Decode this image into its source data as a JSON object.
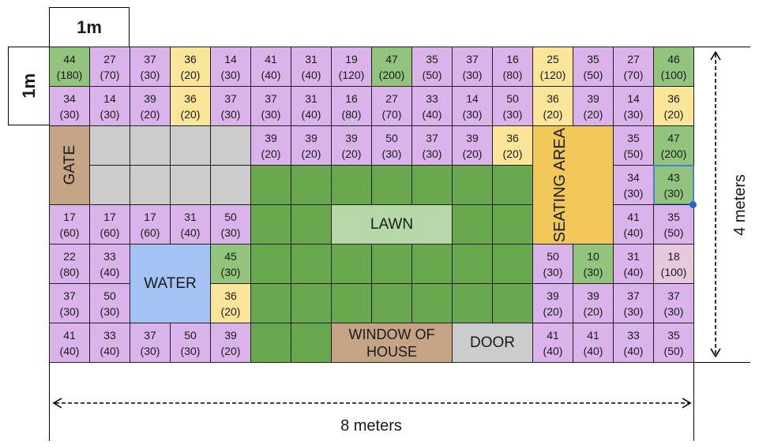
{
  "header": {
    "top_scale": "1m",
    "left_scale": "1m"
  },
  "dimensions": {
    "width_label": "8 meters",
    "height_label": "4 meters"
  },
  "features": {
    "gate": "GATE",
    "water": "WATER",
    "lawn": "LAWN",
    "seating_area": "SEATING AREA",
    "window_of_house": "WINDOW OF HOUSE",
    "door": "DOOR"
  },
  "colors": {
    "purple": "#d9b3ea",
    "green": "#93c47d",
    "yellow": "#fbe599",
    "grey": "#cccccc",
    "lawn": "#6aa84f",
    "pink": "#e6c9dd",
    "water": "#a4c2f4",
    "seating": "#f1c75a",
    "lawn_label": "#b6d7a8",
    "wood": "#c4a484",
    "door": "#cccccc"
  },
  "grid": {
    "rows": 8,
    "cols": 16,
    "selected_cell": [
      3,
      15
    ],
    "cells": [
      [
        0,
        0,
        "44",
        "(180)",
        "green"
      ],
      [
        0,
        1,
        "27",
        "(70)",
        "purple"
      ],
      [
        0,
        2,
        "37",
        "(30)",
        "purple"
      ],
      [
        0,
        3,
        "36",
        "(20)",
        "yellow"
      ],
      [
        0,
        4,
        "14",
        "(30)",
        "purple"
      ],
      [
        0,
        5,
        "41",
        "(40)",
        "purple"
      ],
      [
        0,
        6,
        "31",
        "(40)",
        "purple"
      ],
      [
        0,
        7,
        "19",
        "(120)",
        "purple"
      ],
      [
        0,
        8,
        "47",
        "(200)",
        "green"
      ],
      [
        0,
        9,
        "35",
        "(50)",
        "purple"
      ],
      [
        0,
        10,
        "37",
        "(30)",
        "purple"
      ],
      [
        0,
        11,
        "16",
        "(80)",
        "purple"
      ],
      [
        0,
        12,
        "25",
        "(120)",
        "yellow"
      ],
      [
        0,
        13,
        "35",
        "(50)",
        "purple"
      ],
      [
        0,
        14,
        "27",
        "(70)",
        "purple"
      ],
      [
        0,
        15,
        "46",
        "(100)",
        "green"
      ],
      [
        1,
        0,
        "34",
        "(30)",
        "purple"
      ],
      [
        1,
        1,
        "14",
        "(30)",
        "purple"
      ],
      [
        1,
        2,
        "39",
        "(20)",
        "purple"
      ],
      [
        1,
        3,
        "36",
        "(20)",
        "yellow"
      ],
      [
        1,
        4,
        "37",
        "(30)",
        "purple"
      ],
      [
        1,
        5,
        "37",
        "(30)",
        "purple"
      ],
      [
        1,
        6,
        "31",
        "(40)",
        "purple"
      ],
      [
        1,
        7,
        "16",
        "(80)",
        "purple"
      ],
      [
        1,
        8,
        "27",
        "(70)",
        "purple"
      ],
      [
        1,
        9,
        "33",
        "(40)",
        "purple"
      ],
      [
        1,
        10,
        "14",
        "(30)",
        "purple"
      ],
      [
        1,
        11,
        "50",
        "(30)",
        "purple"
      ],
      [
        1,
        12,
        "36",
        "(20)",
        "yellow"
      ],
      [
        1,
        13,
        "39",
        "(20)",
        "purple"
      ],
      [
        1,
        14,
        "14",
        "(30)",
        "purple"
      ],
      [
        1,
        15,
        "36",
        "(20)",
        "yellow"
      ],
      [
        2,
        1,
        "",
        "",
        "grey"
      ],
      [
        2,
        2,
        "",
        "",
        "grey"
      ],
      [
        2,
        3,
        "",
        "",
        "grey"
      ],
      [
        2,
        4,
        "",
        "",
        "grey"
      ],
      [
        2,
        5,
        "39",
        "(20)",
        "purple"
      ],
      [
        2,
        6,
        "39",
        "(20)",
        "purple"
      ],
      [
        2,
        7,
        "39",
        "(20)",
        "purple"
      ],
      [
        2,
        8,
        "50",
        "(30)",
        "purple"
      ],
      [
        2,
        9,
        "37",
        "(30)",
        "purple"
      ],
      [
        2,
        10,
        "39",
        "(20)",
        "purple"
      ],
      [
        2,
        11,
        "36",
        "(20)",
        "yellow"
      ],
      [
        2,
        14,
        "35",
        "(50)",
        "purple"
      ],
      [
        2,
        15,
        "47",
        "(200)",
        "green"
      ],
      [
        3,
        1,
        "",
        "",
        "grey"
      ],
      [
        3,
        2,
        "",
        "",
        "grey"
      ],
      [
        3,
        3,
        "",
        "",
        "grey"
      ],
      [
        3,
        4,
        "",
        "",
        "grey"
      ],
      [
        3,
        5,
        "",
        "",
        "lawn"
      ],
      [
        3,
        6,
        "",
        "",
        "lawn"
      ],
      [
        3,
        7,
        "",
        "",
        "lawn"
      ],
      [
        3,
        8,
        "",
        "",
        "lawn"
      ],
      [
        3,
        9,
        "",
        "",
        "lawn"
      ],
      [
        3,
        10,
        "",
        "",
        "lawn"
      ],
      [
        3,
        11,
        "",
        "",
        "lawn"
      ],
      [
        3,
        14,
        "34",
        "(30)",
        "purple"
      ],
      [
        3,
        15,
        "43",
        "(30)",
        "green"
      ],
      [
        4,
        0,
        "17",
        "(60)",
        "purple"
      ],
      [
        4,
        1,
        "17",
        "(60)",
        "purple"
      ],
      [
        4,
        2,
        "17",
        "(60)",
        "purple"
      ],
      [
        4,
        3,
        "31",
        "(40)",
        "purple"
      ],
      [
        4,
        4,
        "50",
        "(30)",
        "purple"
      ],
      [
        4,
        5,
        "",
        "",
        "lawn"
      ],
      [
        4,
        6,
        "",
        "",
        "lawn"
      ],
      [
        4,
        10,
        "",
        "",
        "lawn"
      ],
      [
        4,
        11,
        "",
        "",
        "lawn"
      ],
      [
        4,
        14,
        "41",
        "(40)",
        "purple"
      ],
      [
        4,
        15,
        "35",
        "(50)",
        "purple"
      ],
      [
        5,
        0,
        "22",
        "(80)",
        "purple"
      ],
      [
        5,
        1,
        "33",
        "(40)",
        "purple"
      ],
      [
        5,
        4,
        "45",
        "(30)",
        "green"
      ],
      [
        5,
        5,
        "",
        "",
        "lawn"
      ],
      [
        5,
        6,
        "",
        "",
        "lawn"
      ],
      [
        5,
        7,
        "",
        "",
        "lawn"
      ],
      [
        5,
        8,
        "",
        "",
        "lawn"
      ],
      [
        5,
        9,
        "",
        "",
        "lawn"
      ],
      [
        5,
        10,
        "",
        "",
        "lawn"
      ],
      [
        5,
        11,
        "",
        "",
        "lawn"
      ],
      [
        5,
        12,
        "50",
        "(30)",
        "purple"
      ],
      [
        5,
        13,
        "10",
        "(30)",
        "green"
      ],
      [
        5,
        14,
        "31",
        "(40)",
        "purple"
      ],
      [
        5,
        15,
        "18",
        "(100)",
        "pink"
      ],
      [
        6,
        0,
        "37",
        "(30)",
        "purple"
      ],
      [
        6,
        1,
        "50",
        "(30)",
        "purple"
      ],
      [
        6,
        4,
        "36",
        "(20)",
        "yellow"
      ],
      [
        6,
        5,
        "",
        "",
        "lawn"
      ],
      [
        6,
        6,
        "",
        "",
        "lawn"
      ],
      [
        6,
        7,
        "",
        "",
        "lawn"
      ],
      [
        6,
        8,
        "",
        "",
        "lawn"
      ],
      [
        6,
        9,
        "",
        "",
        "lawn"
      ],
      [
        6,
        10,
        "",
        "",
        "lawn"
      ],
      [
        6,
        11,
        "",
        "",
        "lawn"
      ],
      [
        6,
        12,
        "39",
        "(20)",
        "purple"
      ],
      [
        6,
        13,
        "39",
        "(20)",
        "purple"
      ],
      [
        6,
        14,
        "37",
        "(30)",
        "purple"
      ],
      [
        6,
        15,
        "37",
        "(30)",
        "purple"
      ],
      [
        7,
        0,
        "41",
        "(40)",
        "purple"
      ],
      [
        7,
        1,
        "33",
        "(40)",
        "purple"
      ],
      [
        7,
        2,
        "37",
        "(30)",
        "purple"
      ],
      [
        7,
        3,
        "50",
        "(30)",
        "purple"
      ],
      [
        7,
        4,
        "39",
        "(20)",
        "purple"
      ],
      [
        7,
        5,
        "",
        "",
        "lawn"
      ],
      [
        7,
        6,
        "",
        "",
        "lawn"
      ],
      [
        7,
        12,
        "41",
        "(40)",
        "purple"
      ],
      [
        7,
        13,
        "41",
        "(40)",
        "purple"
      ],
      [
        7,
        14,
        "33",
        "(40)",
        "purple"
      ],
      [
        7,
        15,
        "35",
        "(50)",
        "purple"
      ]
    ]
  }
}
